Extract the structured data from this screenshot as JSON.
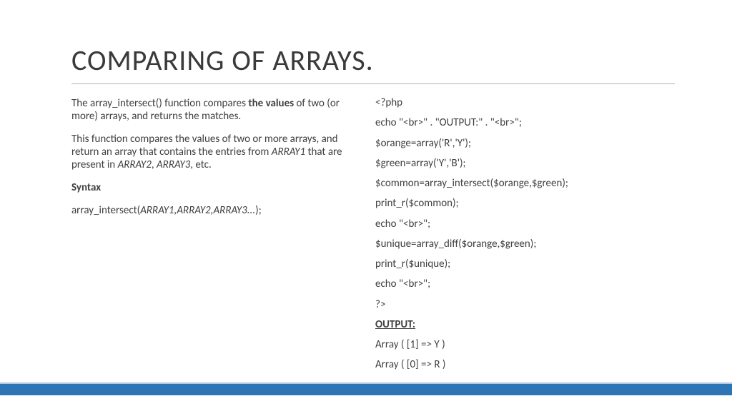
{
  "title": "COMPARING OF ARRAYS.",
  "left": {
    "p1a": "The array_intersect() function compares ",
    "p1b": "the values",
    "p1c": " of two (or more) arrays, and returns the matches.",
    "p2a": "This function compares the values of two or more arrays, and return an array that contains the entries from ",
    "p2b": "ARRAY1",
    "p2c": " that are present in ",
    "p2d": "ARRAY2",
    "p2e": ", ",
    "p2f": "ARRAY3",
    "p2g": ", etc.",
    "syntax_label": "Syntax",
    "syntax_a": "array_intersect(",
    "syntax_b": "ARRAY1,ARRAY2,ARRAY3...",
    "syntax_c": ");"
  },
  "code": {
    "l1": "<?php",
    "l2": "echo \"<br>\" . \"OUTPUT:\" . \"<br>\";",
    "l3": "$orange=array('R','Y');",
    "l4": "$green=array('Y','B');",
    "l5": "$common=array_intersect($orange,$green);",
    "l6": "print_r($common);",
    "l7": "echo \"<br>\";",
    "l8": "$unique=array_diff($orange,$green);",
    "l9": "print_r($unique);",
    "l10": "echo \"<br>\";",
    "l11": "?>",
    "out_label": "OUTPUT:",
    "out1": "Array ( [1] => Y )",
    "out2": "Array ( [0] => R )"
  },
  "colors": {
    "bar": "#2e75b6",
    "bar_top": "#b4c7e7",
    "text": "#404040"
  }
}
